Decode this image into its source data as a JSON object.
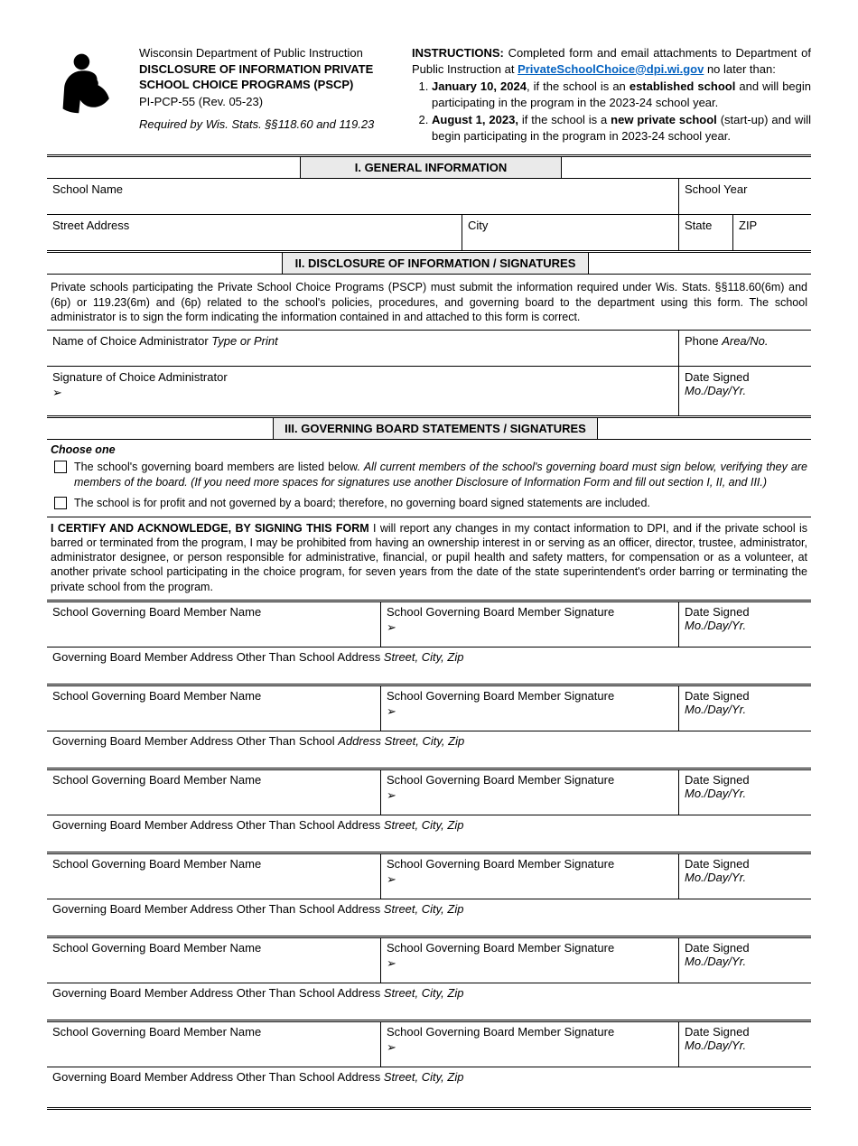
{
  "header": {
    "dept": "Wisconsin Department of Public Instruction",
    "title1": "DISCLOSURE OF INFORMATION PRIVATE",
    "title2": "SCHOOL CHOICE PROGRAMS (PSCP)",
    "formno": "PI-PCP-55 (Rev. 05-23)",
    "required": "Required by Wis. Stats. §§118.60 and 119.23"
  },
  "instructions": {
    "label": "INSTRUCTIONS:",
    "intro1": " Completed form and email attachments to Department of Public Instruction at ",
    "email": "PrivateSchoolChoice@dpi.wi.gov",
    "intro2": " no later than:",
    "item1_a": "January 10, 2024",
    "item1_b": ", if the school is an ",
    "item1_c": "established school",
    "item1_d": " and will begin participating in the program in the 2023-24 school year.",
    "item2_a": "August 1, 2023,",
    "item2_b": " if the school is a ",
    "item2_c": "new private school",
    "item2_d": " (start-up) and will begin participating in the program in 2023-24 school year."
  },
  "section1": {
    "title": "I. GENERAL INFORMATION",
    "school_name": "School Name",
    "school_year": "School Year",
    "street": "Street Address",
    "city": "City",
    "state": "State",
    "zip": "ZIP"
  },
  "section2": {
    "title": "II. DISCLOSURE OF INFORMATION / SIGNATURES",
    "para": "Private schools participating the Private School Choice Programs (PSCP) must submit the information required under Wis. Stats. §§118.60(6m) and (6p) or 119.23(6m) and (6p) related to the school's policies, procedures, and governing board to the department using this form. The school administrator is to sign the form indicating the information contained in and attached to this form is correct.",
    "admin_name_label": "Name of Choice Administrator ",
    "admin_name_hint": "Type or Print",
    "phone_label": "Phone ",
    "phone_hint": "Area/No.",
    "sig_label": "Signature of Choice Administrator",
    "date_label": "Date Signed ",
    "date_hint": "Mo./Day/Yr."
  },
  "section3": {
    "title": "III. GOVERNING BOARD STATEMENTS / SIGNATURES",
    "choose": "Choose one",
    "opt1_a": "The school's governing board members are listed below. ",
    "opt1_b": "All current members of the school's governing board must sign below, verifying they are members of the board. (If you need more spaces for signatures use another Disclosure of Information Form and fill out section I, II, and III.)",
    "opt2": "The school is for profit and not governed by a board; therefore, no governing board signed statements are included.",
    "certify_bold": "I CERTIFY AND ACKNOWLEDGE, BY SIGNING THIS FORM",
    "certify_rest": " I will report any changes in my contact information to DPI, and if the private school is barred or terminated from the program, I may be prohibited from having an ownership interest in or serving as an officer, director, trustee, administrator, administrator designee, or person responsible for administrative, financial, or pupil health and safety matters, for compensation or as a volunteer, at another private school participating in the choice program, for seven years from the date of the state superintendent's order barring or terminating the private school from the program.",
    "member_name": "School Governing Board Member Name",
    "member_sig": "School Governing Board Member Signature",
    "member_date_label": "Date Signed ",
    "member_date_hint": "Mo./Day/Yr.",
    "member_addr_a": "Governing Board Member Address Other Than School Address ",
    "member_addr_hint": "Street, City, Zip",
    "member_addr_b": "Governing Board Member Address Other Than School ",
    "member_addr_b_hint": "Address Street, City, Zip"
  },
  "arrow": "➢"
}
